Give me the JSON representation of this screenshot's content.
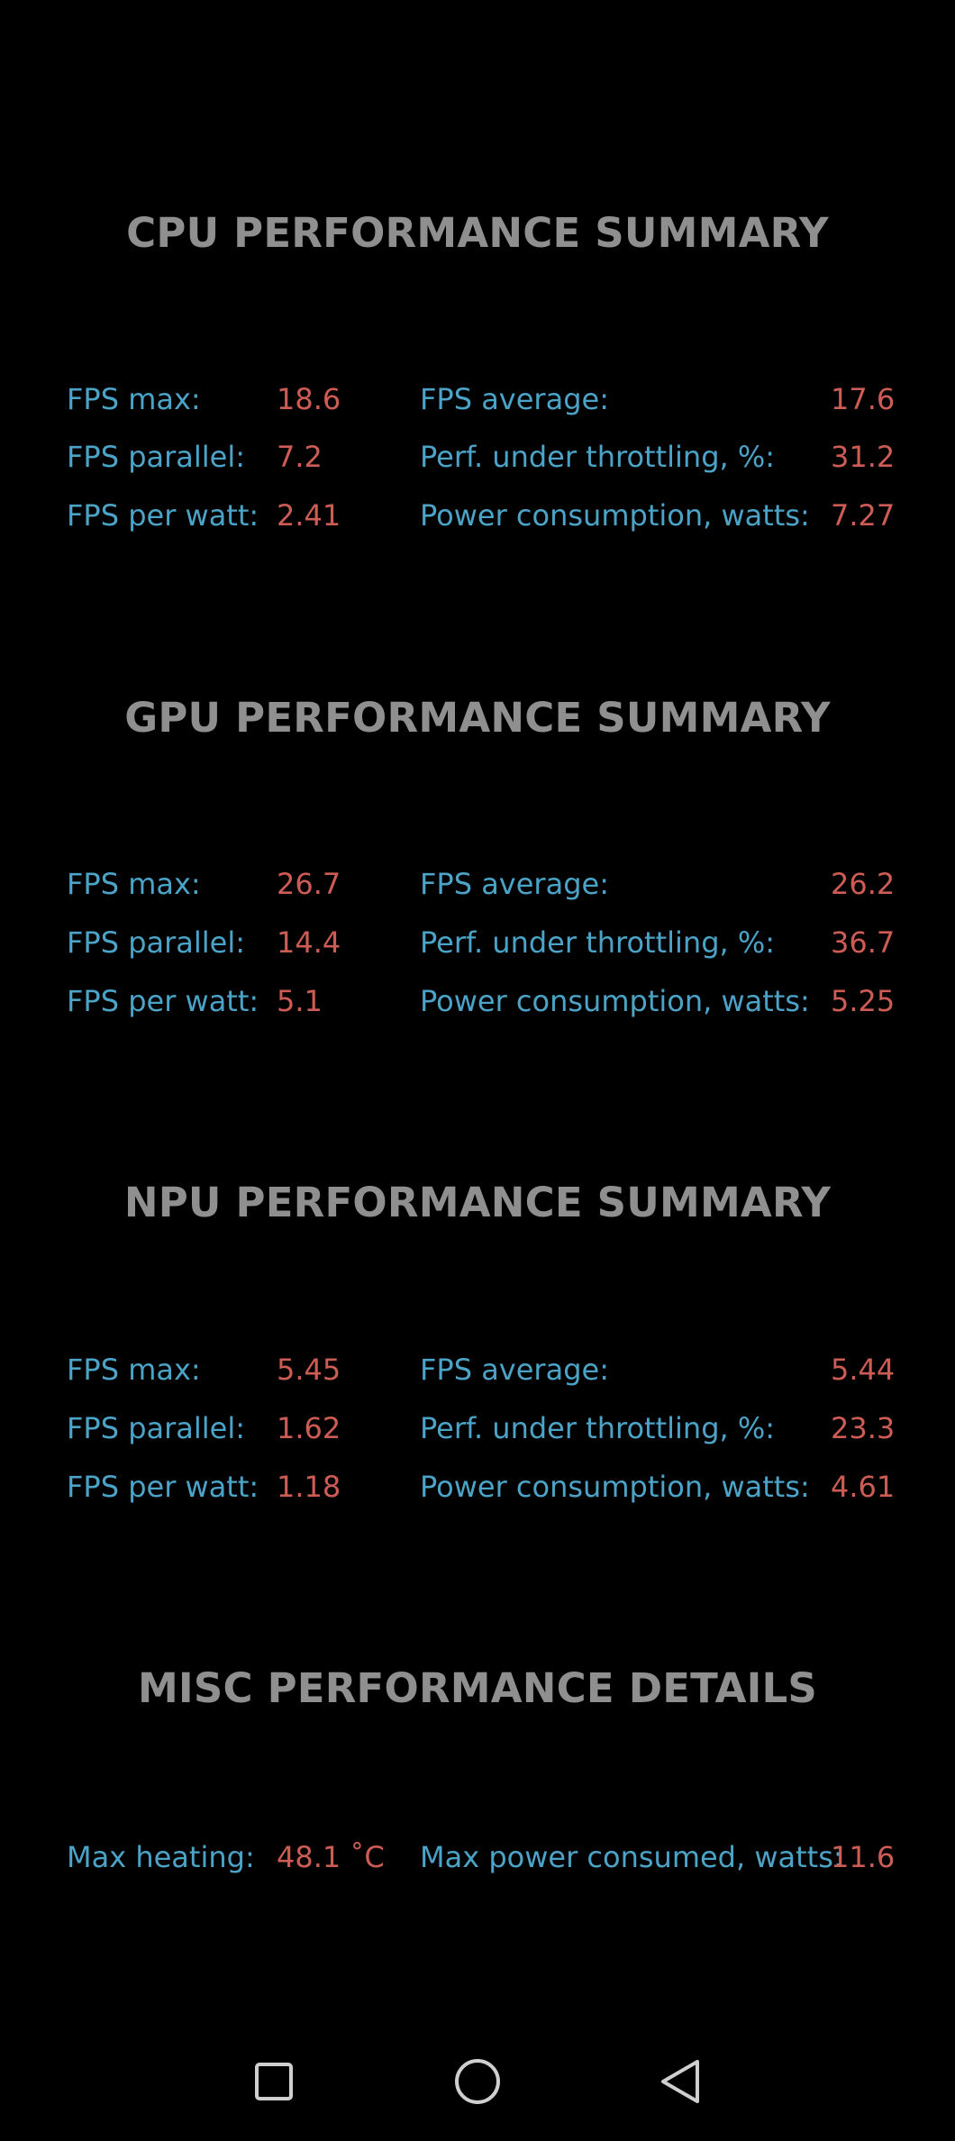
{
  "sections": [
    {
      "title": "CPU PERFORMANCE SUMMARY",
      "left": [
        {
          "label": "FPS max:",
          "value": "18.6"
        },
        {
          "label": "FPS parallel:",
          "value": "7.2"
        },
        {
          "label": "FPS per watt:",
          "value": "2.41"
        }
      ],
      "right": [
        {
          "label": "FPS average:",
          "value": "17.6"
        },
        {
          "label": "Perf. under throttling, %:",
          "value": "31.2"
        },
        {
          "label": "Power consumption, watts:",
          "value": "7.27"
        }
      ]
    },
    {
      "title": "GPU PERFORMANCE SUMMARY",
      "left": [
        {
          "label": "FPS max:",
          "value": "26.7"
        },
        {
          "label": "FPS parallel:",
          "value": "14.4"
        },
        {
          "label": "FPS per watt:",
          "value": "5.1"
        }
      ],
      "right": [
        {
          "label": "FPS average:",
          "value": "26.2"
        },
        {
          "label": "Perf. under throttling, %:",
          "value": "36.7"
        },
        {
          "label": "Power consumption, watts:",
          "value": "5.25"
        }
      ]
    },
    {
      "title": "NPU PERFORMANCE SUMMARY",
      "left": [
        {
          "label": "FPS max:",
          "value": "5.45"
        },
        {
          "label": "FPS parallel:",
          "value": "1.62"
        },
        {
          "label": "FPS per watt:",
          "value": "1.18"
        }
      ],
      "right": [
        {
          "label": "FPS average:",
          "value": "5.44"
        },
        {
          "label": "Perf. under throttling, %:",
          "value": "23.3"
        },
        {
          "label": "Power consumption, watts:",
          "value": "4.61"
        }
      ]
    }
  ],
  "misc": {
    "title": "MISC PERFORMANCE DETAILS",
    "max_heating_label": "Max heating:",
    "max_heating_value": "48.1 ˚C",
    "max_power_label": "Max power consumed, watts:",
    "max_power_value": "11.6"
  },
  "nav": {
    "recents": "square-icon",
    "home": "circle-icon",
    "back": "triangle-back-icon"
  },
  "colors": {
    "background": "#000000",
    "title": "#8f8f8f",
    "label": "#4ba3c7",
    "value": "#cd5c55"
  }
}
